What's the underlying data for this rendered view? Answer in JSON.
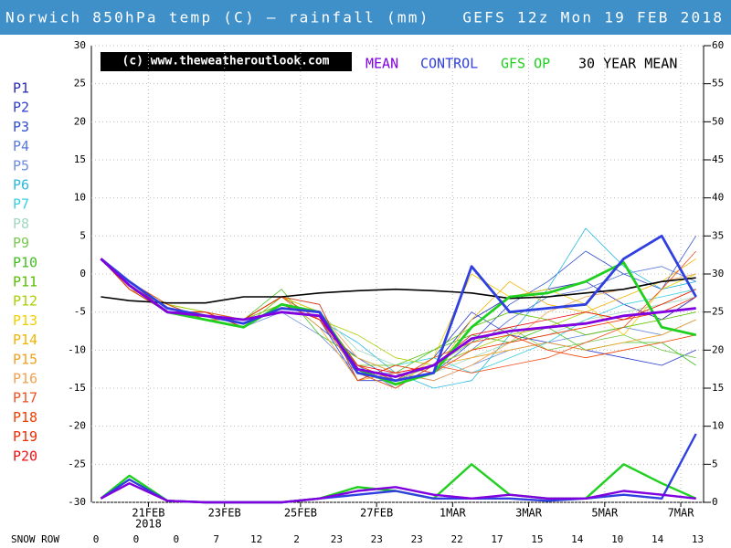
{
  "chart_data": {
    "type": "line",
    "title": "Norwich 850hPa temp (C) — rainfall (mm)   GEFS 12z Mon 19 FEB 2018",
    "copyright": "(c) www.theweatheroutlook.com",
    "x_year_label": "2018",
    "snow_row_label": "SNOW ROW",
    "snow_row": [
      0,
      0,
      0,
      7,
      12,
      2,
      23,
      23,
      23,
      22,
      17,
      15,
      14,
      10,
      14,
      13
    ],
    "xlim": [
      0.5,
      16.6
    ],
    "xticks": [
      {
        "value": 2,
        "label": "21FEB"
      },
      {
        "value": 4,
        "label": "23FEB"
      },
      {
        "value": 6,
        "label": "25FEB"
      },
      {
        "value": 8,
        "label": "27FEB"
      },
      {
        "value": 10,
        "label": "1MAR"
      },
      {
        "value": 12,
        "label": "3MAR"
      },
      {
        "value": 14,
        "label": "5MAR"
      },
      {
        "value": 16,
        "label": "7MAR"
      }
    ],
    "ylim": [
      -30,
      30
    ],
    "yticks": [
      -30,
      -25,
      -20,
      -15,
      -10,
      -5,
      0,
      5,
      10,
      15,
      20,
      25,
      30
    ],
    "y2lim": [
      0,
      60
    ],
    "y2ticks": [
      0,
      5,
      10,
      15,
      20,
      25,
      30,
      35,
      40,
      45,
      50,
      55,
      60
    ],
    "grid": true,
    "x": [
      0.75,
      1.5,
      2.5,
      3.5,
      4.5,
      5.5,
      6.5,
      7.5,
      8.5,
      9.5,
      10.5,
      11.5,
      12.5,
      13.5,
      14.5,
      15.5,
      16.4
    ],
    "series": [
      {
        "name": "P1",
        "color": "#2828b8",
        "values": [
          2,
          -2,
          -5,
          -6,
          -6,
          -4,
          -5,
          -13,
          -15,
          -12,
          -6,
          -3,
          -2,
          -1,
          -4,
          -6,
          -3
        ]
      },
      {
        "name": "P2",
        "color": "#2c3cd0",
        "values": [
          2,
          -1,
          -5,
          -5,
          -7,
          -4,
          -6,
          -14,
          -14,
          -11,
          -5,
          -8,
          -9,
          -10,
          -11,
          -12,
          -10
        ]
      },
      {
        "name": "P3",
        "color": "#3050d0",
        "values": [
          2,
          -2,
          -4,
          -6,
          -6,
          -3,
          -7,
          -11,
          -14,
          -13,
          -9,
          -4,
          -1,
          3,
          0,
          -2,
          5
        ]
      },
      {
        "name": "P4",
        "color": "#5a78d8",
        "values": [
          2,
          -1,
          -5,
          -5,
          -6,
          -3,
          -5,
          -12,
          -15,
          -12,
          -10,
          -6,
          -3,
          -2,
          0,
          1,
          -1
        ]
      },
      {
        "name": "P5",
        "color": "#6c8ce0",
        "values": [
          2,
          -2,
          -5,
          -6,
          -7,
          -5,
          -8,
          -13,
          -13,
          -14,
          -12,
          -10,
          -9,
          -8,
          -7,
          -8,
          -6
        ]
      },
      {
        "name": "P6",
        "color": "#28b8e0",
        "values": [
          2,
          -1,
          -4,
          -6,
          -6,
          -4,
          -6,
          -9,
          -13,
          -15,
          -14,
          -8,
          -2,
          6,
          1,
          -2,
          -1
        ]
      },
      {
        "name": "P7",
        "color": "#38d0e0",
        "values": [
          2,
          -2,
          -5,
          -5,
          -6,
          -3,
          -4,
          -14,
          -12,
          -11,
          -13,
          -11,
          -9,
          -6,
          -4,
          -3,
          -2
        ]
      },
      {
        "name": "P8",
        "color": "#a0d8c0",
        "values": [
          2,
          -1,
          -5,
          -6,
          -7,
          -4,
          -5,
          -10,
          -12,
          -13,
          -11,
          -9,
          -8,
          -6,
          -5,
          -4,
          -3
        ]
      },
      {
        "name": "P9",
        "color": "#78c850",
        "values": [
          2,
          -2,
          -4,
          -5,
          -6,
          -3,
          -6,
          -13,
          -14,
          -12,
          -9,
          -7,
          -10,
          -9,
          -8,
          -10,
          -11
        ]
      },
      {
        "name": "P10",
        "color": "#40c020",
        "values": [
          2,
          -1,
          -5,
          -6,
          -6,
          -2,
          -8,
          -11,
          -13,
          -10,
          -8,
          -9,
          -7,
          -10,
          -9,
          -9,
          -12
        ]
      },
      {
        "name": "P11",
        "color": "#58c000",
        "values": [
          2,
          -2,
          -5,
          -6,
          -7,
          -3,
          -5,
          -12,
          -12,
          -10,
          -7,
          -5,
          -6,
          -8,
          -7,
          -6,
          -5
        ]
      },
      {
        "name": "P12",
        "color": "#a8d000",
        "values": [
          2,
          -1,
          -4,
          -5,
          -6,
          -4,
          -6,
          -8,
          -11,
          -12,
          -10,
          -8,
          -7,
          -5,
          -6,
          -4,
          -2
        ]
      },
      {
        "name": "P13",
        "color": "#f0d000",
        "values": [
          2,
          -2,
          -5,
          -6,
          -6,
          -3,
          -5,
          -13,
          -15,
          -11,
          0,
          -3,
          -2,
          -4,
          -8,
          -2,
          0
        ]
      },
      {
        "name": "P14",
        "color": "#f0b400",
        "values": [
          2,
          -1,
          -5,
          -5,
          -7,
          -4,
          -6,
          -12,
          -14,
          -13,
          -6,
          -1,
          -4,
          -5,
          -3,
          -1,
          2
        ]
      },
      {
        "name": "P15",
        "color": "#f0a020",
        "values": [
          2,
          -2,
          -4,
          -6,
          -6,
          -3,
          -7,
          -14,
          -13,
          -12,
          -11,
          -10,
          -9,
          -10,
          -9,
          -8,
          -6
        ]
      },
      {
        "name": "P16",
        "color": "#f0a050",
        "values": [
          2,
          -1,
          -5,
          -6,
          -7,
          -4,
          -5,
          -11,
          -13,
          -14,
          -12,
          -9,
          -5,
          -3,
          -2,
          -1,
          0
        ]
      },
      {
        "name": "P17",
        "color": "#f05020",
        "values": [
          2,
          -2,
          -5,
          -5,
          -6,
          -3,
          -6,
          -13,
          -15,
          -12,
          -13,
          -12,
          -11,
          -9,
          -7,
          -2,
          3
        ]
      },
      {
        "name": "P18",
        "color": "#f04000",
        "values": [
          2,
          -1,
          -4,
          -6,
          -7,
          -4,
          -5,
          -12,
          -14,
          -11,
          -9,
          -8,
          -10,
          -11,
          -10,
          -9,
          -8
        ]
      },
      {
        "name": "P19",
        "color": "#f02c00",
        "values": [
          2,
          -2,
          -5,
          -6,
          -6,
          -3,
          -4,
          -14,
          -12,
          -13,
          -10,
          -9,
          -8,
          -7,
          -6,
          -5,
          -3
        ]
      },
      {
        "name": "P20",
        "color": "#f01010",
        "values": [
          2,
          -1,
          -5,
          -5,
          -7,
          -4,
          -6,
          -12,
          -13,
          -12,
          -8,
          -7,
          -6,
          -5,
          -6,
          -4,
          -2
        ]
      },
      {
        "name": "30 YEAR MEAN",
        "color": "#000000",
        "values": [
          -3,
          -3.5,
          -3.8,
          -3.8,
          -3,
          -3,
          -2.5,
          -2.2,
          -2,
          -2.2,
          -2.5,
          -3.2,
          -3,
          -2.5,
          -2,
          -1,
          -0.5
        ]
      },
      {
        "name": "GFS OP",
        "color": "#20d020",
        "values": [
          2,
          -1.5,
          -5,
          -6,
          -7,
          -4,
          -5,
          -12.5,
          -14.5,
          -13,
          -7,
          -3,
          -2.5,
          -1,
          1.5,
          -7,
          -8
        ],
        "rain": [
          0.5,
          3.5,
          0.2,
          0,
          0,
          0,
          0.5,
          2,
          1.5,
          0.5,
          5,
          1,
          0.5,
          0.5,
          5,
          2.5,
          0.5
        ]
      },
      {
        "name": "CONTROL",
        "color": "#3040e0",
        "values": [
          2,
          -1,
          -4.5,
          -5.5,
          -6.5,
          -4.5,
          -5,
          -13,
          -14,
          -13,
          1,
          -5,
          -4.5,
          -4,
          2,
          5,
          -3
        ],
        "rain": [
          0.5,
          3,
          0.2,
          0,
          0,
          0,
          0.5,
          1,
          1.5,
          0.5,
          0.5,
          0.5,
          0.2,
          0.5,
          1,
          0.5,
          9
        ]
      },
      {
        "name": "MEAN",
        "color": "#8000e0",
        "values": [
          2,
          -1.5,
          -5,
          -5.5,
          -6,
          -5,
          -5.5,
          -12.5,
          -13.5,
          -12,
          -8.5,
          -7.5,
          -7,
          -6.5,
          -5.5,
          -5,
          -4.5
        ],
        "rain": [
          0.5,
          2.5,
          0.2,
          0,
          0,
          0,
          0.5,
          1.5,
          2,
          1,
          0.5,
          1,
          0.5,
          0.5,
          1.5,
          1,
          0.5
        ]
      }
    ]
  }
}
